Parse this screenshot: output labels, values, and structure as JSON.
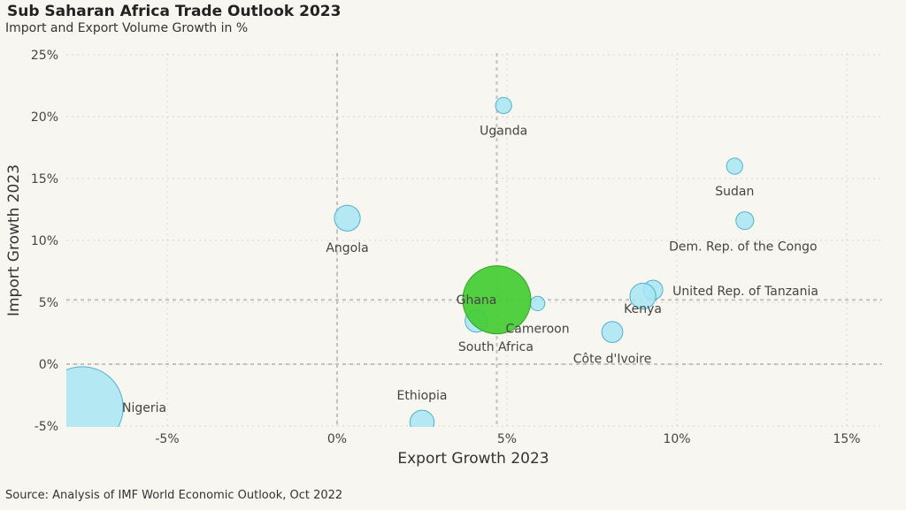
{
  "header": {
    "title": "Sub Saharan Africa Trade Outlook 2023",
    "subtitle": "Import and Export Volume Growth in %"
  },
  "footer": {
    "source": "Source: Analysis of IMF World Economic Outlook, Oct 2022"
  },
  "chart_data": {
    "type": "scatter",
    "title": "Sub Saharan Africa Trade Outlook 2023",
    "subtitle": "Import and Export Volume Growth in %",
    "xlabel": "Export Growth 2023",
    "ylabel": "Import Growth 2023",
    "xlim": [
      -8,
      16
    ],
    "ylim": [
      -5,
      25
    ],
    "x_ticks": [
      -5,
      0,
      5,
      10,
      15
    ],
    "y_ticks": [
      -5,
      0,
      5,
      10,
      15,
      20,
      25
    ],
    "x_tick_labels": [
      "-5%",
      "0%",
      "5%",
      "10%",
      "15%"
    ],
    "y_tick_labels": [
      "-5%",
      "0%",
      "5%",
      "10%",
      "15%",
      "20%",
      "25%"
    ],
    "grid": true,
    "reference_lines": {
      "x": [
        0,
        4.7
      ],
      "y": [
        0,
        5.2
      ]
    },
    "colors": {
      "default": "#a8e6f5",
      "default_stroke": "#4fb0cc",
      "highlight": "#44cc33",
      "highlight_stroke": "#2fa020"
    },
    "points": [
      {
        "label": "Uganda",
        "x": 4.9,
        "y": 20.9,
        "size": 1.0
      },
      {
        "label": "Sudan",
        "x": 11.7,
        "y": 16.0,
        "size": 1.0
      },
      {
        "label": "Angola",
        "x": 0.3,
        "y": 11.8,
        "size": 1.6
      },
      {
        "label": "Dem. Rep. of the Congo",
        "x": 12.0,
        "y": 11.6,
        "size": 1.1
      },
      {
        "label": "United Rep. of Tanzania",
        "x": 9.3,
        "y": 6.0,
        "size": 1.2
      },
      {
        "label": "Kenya",
        "x": 9.0,
        "y": 5.5,
        "size": 1.6
      },
      {
        "label": "Ghana",
        "x": 4.7,
        "y": 5.2,
        "size": 7.5,
        "highlight": true
      },
      {
        "label": "Cameroon",
        "x": 5.9,
        "y": 4.9,
        "size": 0.9
      },
      {
        "label": "South Africa",
        "x": 4.1,
        "y": 3.5,
        "size": 1.4
      },
      {
        "label": "Côte d'Ivoire",
        "x": 8.1,
        "y": 2.6,
        "size": 1.3
      },
      {
        "label": "Ethiopia",
        "x": 2.5,
        "y": -4.7,
        "size": 1.5
      },
      {
        "label": "Nigeria",
        "x": -7.5,
        "y": -3.5,
        "size": 9.0
      }
    ]
  }
}
